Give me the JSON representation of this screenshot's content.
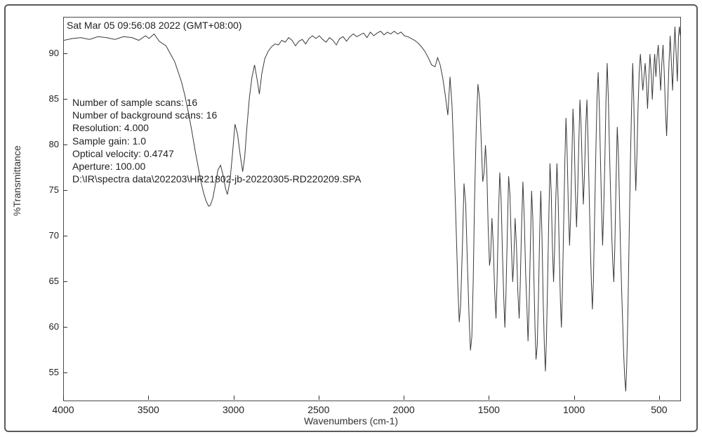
{
  "chart": {
    "type": "line",
    "xlabel": "Wavenumbers (cm-1)",
    "ylabel": "%Transmittance",
    "x_domain": [
      4000,
      380
    ],
    "y_domain": [
      52,
      94
    ],
    "x_ticks": [
      4000,
      3500,
      3000,
      2500,
      2000,
      1500,
      1000,
      500
    ],
    "y_ticks": [
      55,
      60,
      65,
      70,
      75,
      80,
      85,
      90
    ],
    "line_color": "#3a3a3a",
    "line_width": 1,
    "border_color": "#4a4a4a",
    "outer_border_color": "#5a5a5a",
    "background_color": "#ffffff",
    "tick_color": "#333333",
    "text_color": "#222222",
    "label_fontsize": 14,
    "tick_fontsize": 13,
    "meta_fontsize": 14,
    "metadata": {
      "timestamp": "Sat Mar 05 09:56:08 2022 (GMT+08:00)",
      "rows": [
        "Number of sample scans:  16",
        "Number of background scans:  16",
        "Resolution:   4.000",
        "Sample gain:  1.0",
        "Optical velocity:  0.4747",
        "Aperture:  100.00",
        "D:\\IR\\spectra data\\202203\\HR21802-jb-20220305-RD220209.SPA"
      ]
    },
    "spectrum": [
      [
        4000,
        91.5
      ],
      [
        3950,
        91.7
      ],
      [
        3900,
        91.8
      ],
      [
        3850,
        91.6
      ],
      [
        3800,
        91.9
      ],
      [
        3750,
        91.8
      ],
      [
        3700,
        91.6
      ],
      [
        3650,
        91.9
      ],
      [
        3600,
        91.8
      ],
      [
        3560,
        91.5
      ],
      [
        3520,
        92.0
      ],
      [
        3500,
        91.7
      ],
      [
        3470,
        92.2
      ],
      [
        3440,
        91.4
      ],
      [
        3400,
        90.9
      ],
      [
        3380,
        90.2
      ],
      [
        3350,
        89.2
      ],
      [
        3330,
        88.1
      ],
      [
        3310,
        87.0
      ],
      [
        3290,
        85.5
      ],
      [
        3270,
        83.7
      ],
      [
        3250,
        81.7
      ],
      [
        3230,
        79.5
      ],
      [
        3210,
        77.5
      ],
      [
        3195,
        76.0
      ],
      [
        3180,
        74.8
      ],
      [
        3165,
        73.9
      ],
      [
        3150,
        73.3
      ],
      [
        3140,
        73.4
      ],
      [
        3125,
        74.2
      ],
      [
        3110,
        75.7
      ],
      [
        3095,
        77.3
      ],
      [
        3080,
        77.8
      ],
      [
        3065,
        76.7
      ],
      [
        3050,
        75.2
      ],
      [
        3040,
        74.6
      ],
      [
        3025,
        76.0
      ],
      [
        3010,
        79.0
      ],
      [
        2995,
        82.3
      ],
      [
        2980,
        81.2
      ],
      [
        2965,
        79.0
      ],
      [
        2950,
        77.1
      ],
      [
        2938,
        78.7
      ],
      [
        2925,
        82.0
      ],
      [
        2910,
        85.3
      ],
      [
        2895,
        87.5
      ],
      [
        2880,
        88.8
      ],
      [
        2865,
        87.2
      ],
      [
        2852,
        85.6
      ],
      [
        2838,
        87.8
      ],
      [
        2820,
        89.5
      ],
      [
        2800,
        90.3
      ],
      [
        2780,
        90.8
      ],
      [
        2760,
        91.1
      ],
      [
        2740,
        91.0
      ],
      [
        2720,
        91.5
      ],
      [
        2700,
        91.3
      ],
      [
        2680,
        91.8
      ],
      [
        2660,
        91.5
      ],
      [
        2640,
        90.9
      ],
      [
        2620,
        91.4
      ],
      [
        2600,
        91.6
      ],
      [
        2580,
        91.1
      ],
      [
        2560,
        91.7
      ],
      [
        2540,
        92.0
      ],
      [
        2520,
        91.7
      ],
      [
        2500,
        92.0
      ],
      [
        2480,
        91.6
      ],
      [
        2460,
        91.3
      ],
      [
        2440,
        91.8
      ],
      [
        2420,
        91.5
      ],
      [
        2400,
        91.0
      ],
      [
        2380,
        91.7
      ],
      [
        2360,
        91.9
      ],
      [
        2340,
        91.4
      ],
      [
        2320,
        91.9
      ],
      [
        2300,
        92.2
      ],
      [
        2280,
        91.9
      ],
      [
        2260,
        92.1
      ],
      [
        2240,
        92.3
      ],
      [
        2220,
        91.8
      ],
      [
        2200,
        92.4
      ],
      [
        2180,
        92.0
      ],
      [
        2160,
        92.3
      ],
      [
        2140,
        92.5
      ],
      [
        2120,
        92.1
      ],
      [
        2100,
        92.4
      ],
      [
        2080,
        92.2
      ],
      [
        2060,
        92.5
      ],
      [
        2040,
        92.2
      ],
      [
        2020,
        92.4
      ],
      [
        2000,
        92.0
      ],
      [
        1980,
        91.9
      ],
      [
        1960,
        91.7
      ],
      [
        1940,
        91.5
      ],
      [
        1920,
        91.2
      ],
      [
        1900,
        90.8
      ],
      [
        1880,
        90.3
      ],
      [
        1860,
        89.6
      ],
      [
        1840,
        88.8
      ],
      [
        1820,
        88.6
      ],
      [
        1805,
        89.6
      ],
      [
        1790,
        88.8
      ],
      [
        1775,
        87.4
      ],
      [
        1760,
        85.5
      ],
      [
        1745,
        83.3
      ],
      [
        1732,
        87.5
      ],
      [
        1720,
        84.2
      ],
      [
        1708,
        78.0
      ],
      [
        1696,
        70.8
      ],
      [
        1686,
        64.4
      ],
      [
        1678,
        60.6
      ],
      [
        1670,
        62.4
      ],
      [
        1660,
        68.5
      ],
      [
        1650,
        75.8
      ],
      [
        1640,
        73.5
      ],
      [
        1630,
        67.0
      ],
      [
        1620,
        61.0
      ],
      [
        1612,
        57.5
      ],
      [
        1604,
        59.0
      ],
      [
        1596,
        65.0
      ],
      [
        1588,
        74.0
      ],
      [
        1578,
        82.0
      ],
      [
        1568,
        86.7
      ],
      [
        1558,
        85.0
      ],
      [
        1548,
        80.0
      ],
      [
        1540,
        76.0
      ],
      [
        1532,
        77.0
      ],
      [
        1524,
        80.0
      ],
      [
        1516,
        77.2
      ],
      [
        1508,
        71.0
      ],
      [
        1500,
        66.8
      ],
      [
        1494,
        67.7
      ],
      [
        1486,
        72.0
      ],
      [
        1478,
        69.0
      ],
      [
        1470,
        64.0
      ],
      [
        1462,
        61.0
      ],
      [
        1456,
        65.0
      ],
      [
        1448,
        72.0
      ],
      [
        1440,
        77.0
      ],
      [
        1432,
        74.0
      ],
      [
        1424,
        68.0
      ],
      [
        1416,
        63.0
      ],
      [
        1410,
        60.0
      ],
      [
        1404,
        63.3
      ],
      [
        1396,
        70.0
      ],
      [
        1388,
        76.6
      ],
      [
        1380,
        74.5
      ],
      [
        1372,
        69.0
      ],
      [
        1364,
        65.0
      ],
      [
        1358,
        67.0
      ],
      [
        1350,
        72.0
      ],
      [
        1342,
        69.0
      ],
      [
        1334,
        64.0
      ],
      [
        1326,
        61.0
      ],
      [
        1320,
        64.5
      ],
      [
        1312,
        71.0
      ],
      [
        1304,
        76.0
      ],
      [
        1296,
        72.0
      ],
      [
        1288,
        66.0
      ],
      [
        1280,
        62.0
      ],
      [
        1274,
        58.5
      ],
      [
        1268,
        62.0
      ],
      [
        1260,
        69.0
      ],
      [
        1253,
        75.0
      ],
      [
        1246,
        72.0
      ],
      [
        1240,
        66.0
      ],
      [
        1233,
        60.0
      ],
      [
        1227,
        56.5
      ],
      [
        1220,
        58.0
      ],
      [
        1213,
        63.0
      ],
      [
        1206,
        70.0
      ],
      [
        1199,
        75.0
      ],
      [
        1192,
        70.0
      ],
      [
        1185,
        63.0
      ],
      [
        1178,
        58.0
      ],
      [
        1172,
        55.2
      ],
      [
        1166,
        58.5
      ],
      [
        1159,
        65.0
      ],
      [
        1152,
        72.0
      ],
      [
        1145,
        78.0
      ],
      [
        1138,
        75.0
      ],
      [
        1131,
        69.0
      ],
      [
        1124,
        65.0
      ],
      [
        1118,
        68.5
      ],
      [
        1111,
        74.0
      ],
      [
        1104,
        78.0
      ],
      [
        1097,
        74.0
      ],
      [
        1090,
        68.0
      ],
      [
        1084,
        63.0
      ],
      [
        1078,
        60.0
      ],
      [
        1072,
        64.0
      ],
      [
        1065,
        71.0
      ],
      [
        1058,
        78.0
      ],
      [
        1051,
        83.0
      ],
      [
        1044,
        79.0
      ],
      [
        1037,
        73.0
      ],
      [
        1030,
        69.0
      ],
      [
        1024,
        72.0
      ],
      [
        1017,
        78.0
      ],
      [
        1010,
        84.0
      ],
      [
        1003,
        81.0
      ],
      [
        996,
        75.0
      ],
      [
        989,
        71.0
      ],
      [
        983,
        74.5
      ],
      [
        976,
        80.0
      ],
      [
        969,
        85.0
      ],
      [
        962,
        82.0
      ],
      [
        955,
        77.0
      ],
      [
        949,
        73.5
      ],
      [
        942,
        77.0
      ],
      [
        935,
        82.0
      ],
      [
        928,
        85.0
      ],
      [
        921,
        80.0
      ],
      [
        914,
        74.0
      ],
      [
        908,
        69.0
      ],
      [
        902,
        65.0
      ],
      [
        896,
        62.0
      ],
      [
        890,
        65.0
      ],
      [
        883,
        72.0
      ],
      [
        876,
        79.0
      ],
      [
        869,
        85.0
      ],
      [
        862,
        88.0
      ],
      [
        855,
        84.0
      ],
      [
        848,
        78.0
      ],
      [
        842,
        73.0
      ],
      [
        836,
        69.0
      ],
      [
        830,
        72.5
      ],
      [
        823,
        78.0
      ],
      [
        816,
        85.0
      ],
      [
        809,
        89.0
      ],
      [
        802,
        85.0
      ],
      [
        795,
        79.0
      ],
      [
        788,
        74.0
      ],
      [
        782,
        70.0
      ],
      [
        776,
        67.0
      ],
      [
        770,
        65.0
      ],
      [
        764,
        69.0
      ],
      [
        757,
        76.0
      ],
      [
        750,
        82.0
      ],
      [
        743,
        79.0
      ],
      [
        736,
        73.0
      ],
      [
        730,
        68.0
      ],
      [
        724,
        64.0
      ],
      [
        718,
        60.5
      ],
      [
        712,
        57.0
      ],
      [
        706,
        54.5
      ],
      [
        700,
        53.0
      ],
      [
        694,
        56.0
      ],
      [
        687,
        62.0
      ],
      [
        680,
        70.0
      ],
      [
        673,
        78.0
      ],
      [
        666,
        84.0
      ],
      [
        659,
        89.0
      ],
      [
        653,
        85.0
      ],
      [
        647,
        79.0
      ],
      [
        641,
        75.0
      ],
      [
        635,
        78.5
      ],
      [
        628,
        84.0
      ],
      [
        621,
        88.0
      ],
      [
        614,
        90.0
      ],
      [
        607,
        88.0
      ],
      [
        600,
        86.0
      ],
      [
        593,
        87.5
      ],
      [
        586,
        89.0
      ],
      [
        579,
        87.0
      ],
      [
        572,
        84.0
      ],
      [
        565,
        87.0
      ],
      [
        558,
        90.0
      ],
      [
        551,
        88.0
      ],
      [
        544,
        85.0
      ],
      [
        537,
        88.0
      ],
      [
        530,
        90.0
      ],
      [
        523,
        87.5
      ],
      [
        516,
        89.7
      ],
      [
        509,
        91.0
      ],
      [
        502,
        88.5
      ],
      [
        495,
        86.0
      ],
      [
        488,
        89.0
      ],
      [
        481,
        91.0
      ],
      [
        474,
        88.0
      ],
      [
        467,
        84.0
      ],
      [
        460,
        81.0
      ],
      [
        453,
        85.0
      ],
      [
        446,
        89.0
      ],
      [
        439,
        92.0
      ],
      [
        432,
        89.0
      ],
      [
        425,
        86.0
      ],
      [
        418,
        90.0
      ],
      [
        411,
        93.0
      ],
      [
        404,
        90.0
      ],
      [
        397,
        87.0
      ],
      [
        390,
        92.0
      ],
      [
        385,
        93.0
      ],
      [
        380,
        92.0
      ]
    ]
  }
}
